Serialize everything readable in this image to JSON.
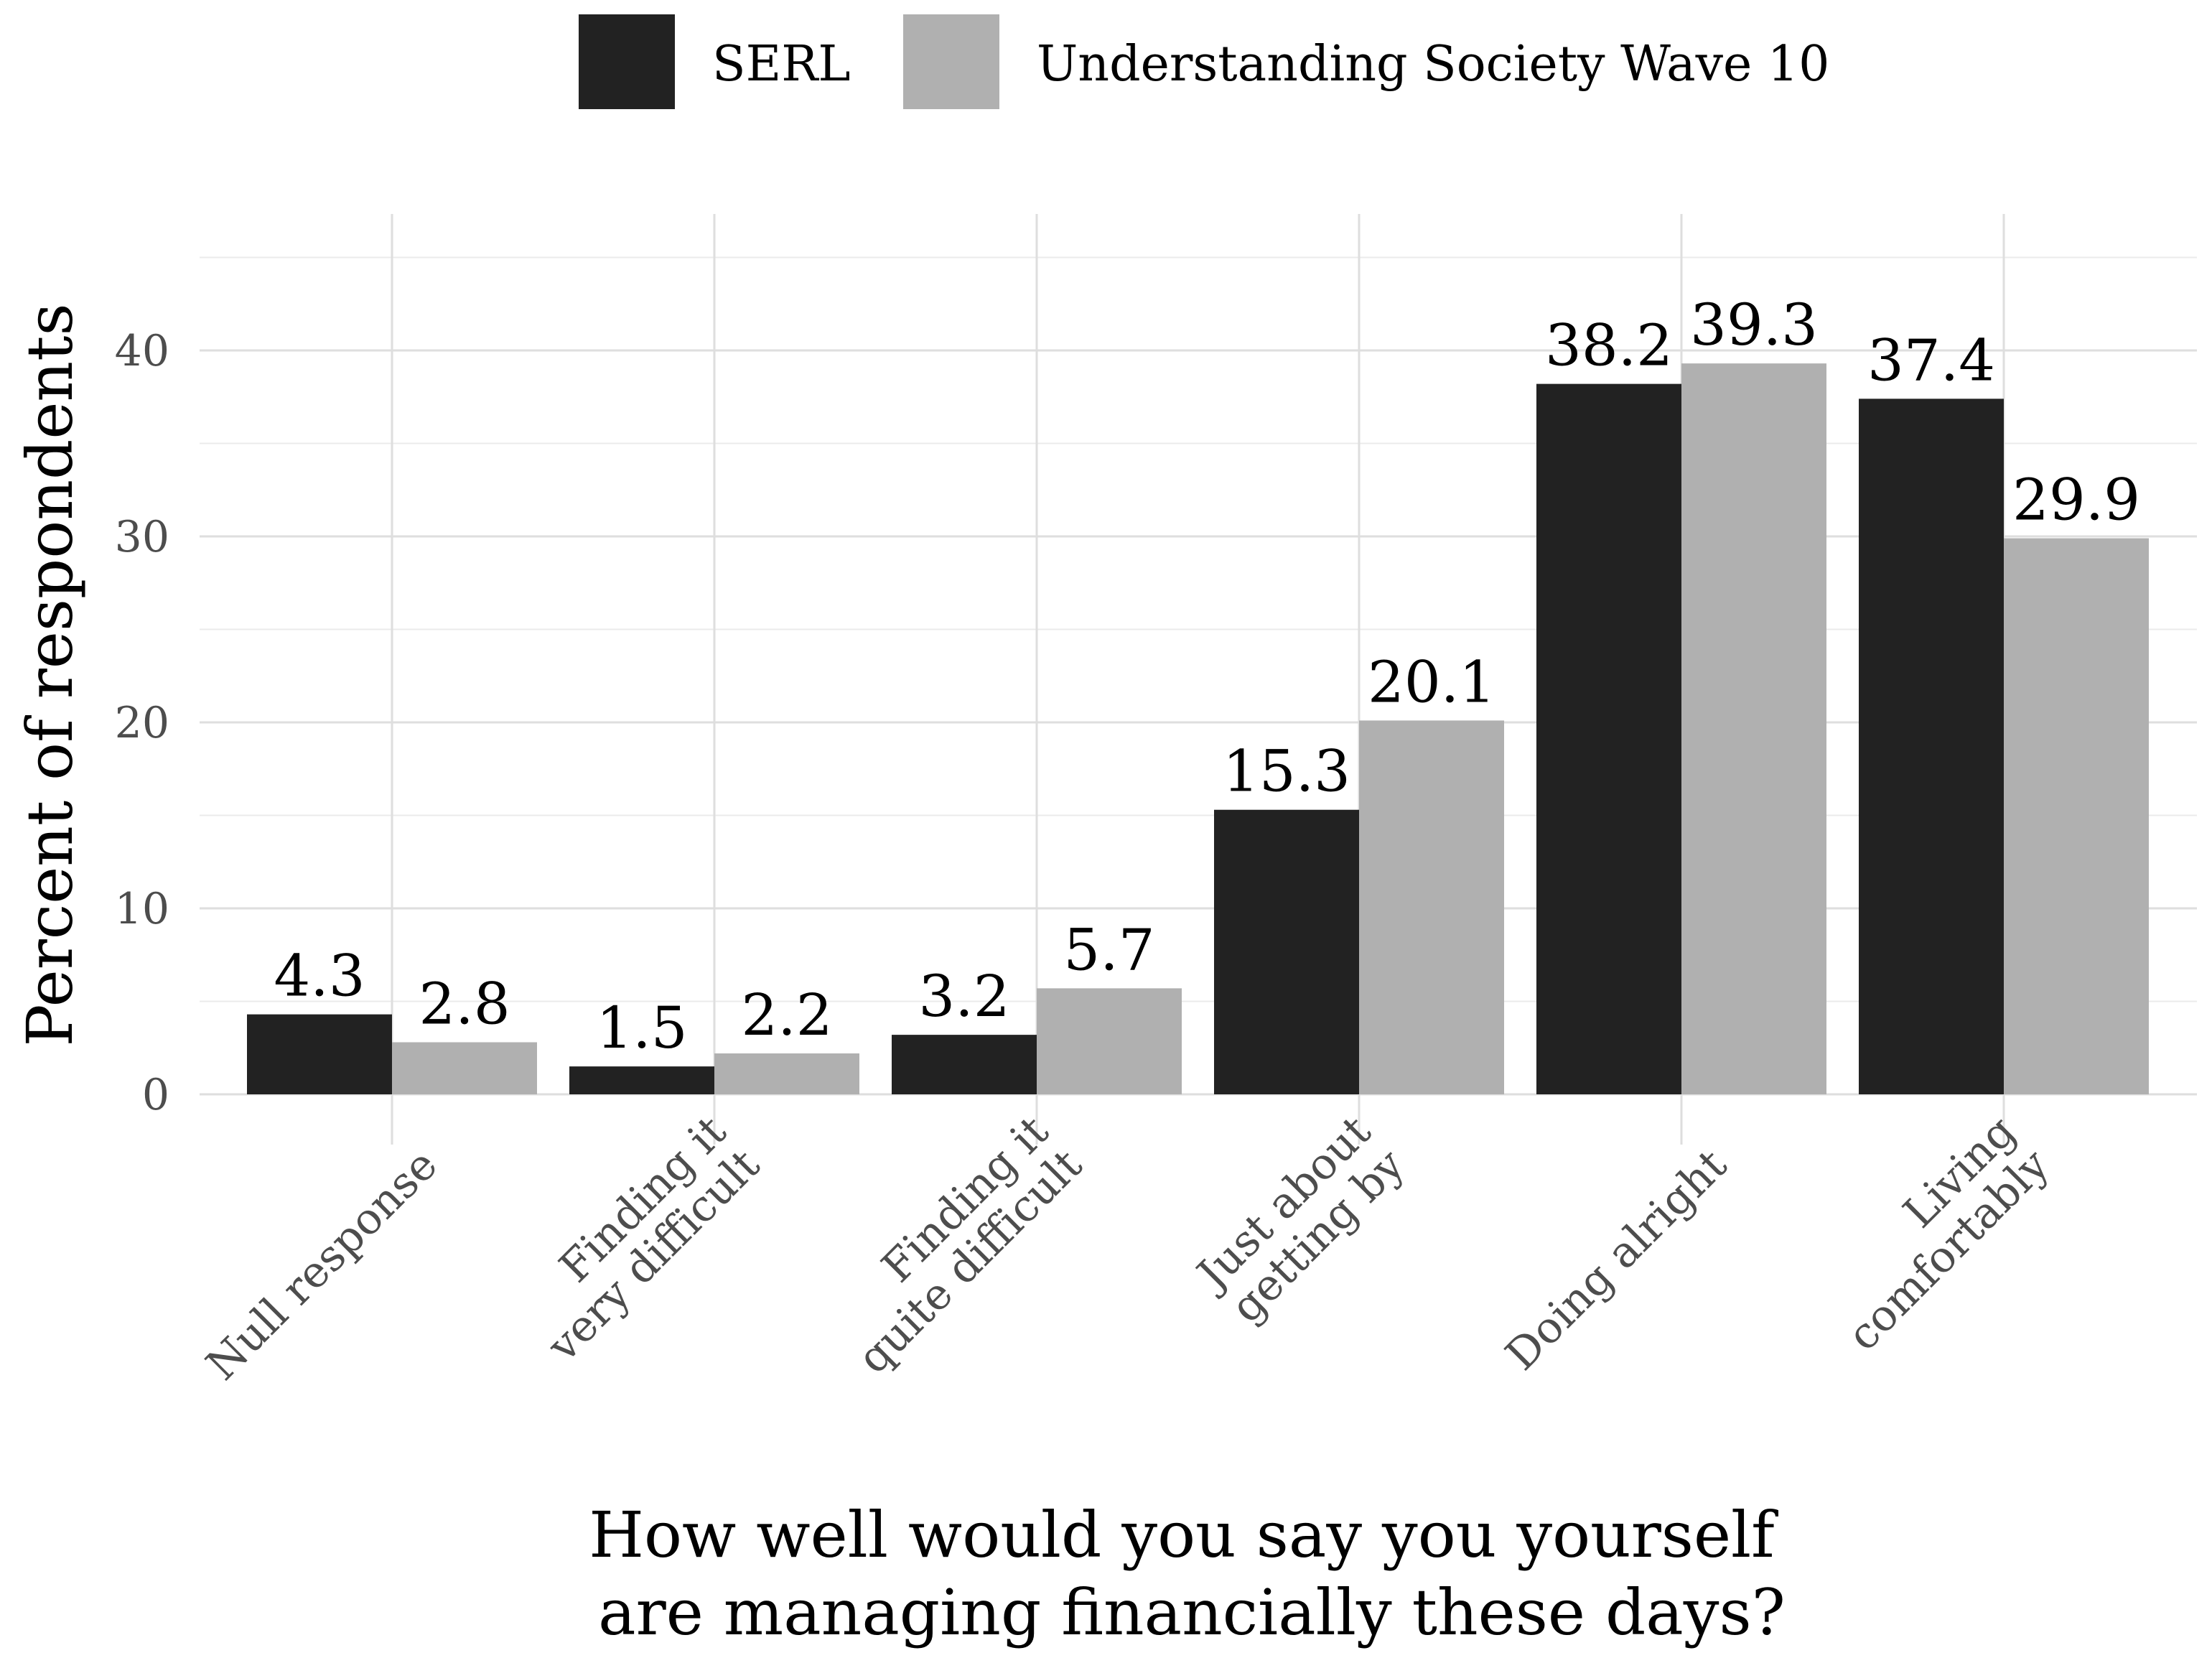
{
  "chart_data": {
    "type": "bar",
    "title": "",
    "xlabel": [
      "How well would you say you yourself",
      "are managing financially these days?"
    ],
    "ylabel": "Percent of respondents",
    "ylim": [
      0,
      45
    ],
    "yticks": [
      0,
      10,
      20,
      30,
      40
    ],
    "grid": true,
    "legend_position": "top",
    "categories": [
      [
        "Null response"
      ],
      [
        "Finding it",
        "very difficult"
      ],
      [
        "Finding it",
        "quite difficult"
      ],
      [
        "Just about",
        "getting by"
      ],
      [
        "Doing alright"
      ],
      [
        "Living",
        "comfortably"
      ]
    ],
    "series": [
      {
        "name": "SERL",
        "color": "#222222",
        "values": [
          4.3,
          1.5,
          3.2,
          15.3,
          38.2,
          37.4
        ],
        "labels": [
          "4.3",
          "1.5",
          "3.2",
          "15.3",
          "38.2",
          "37.4"
        ]
      },
      {
        "name": "Understanding Society Wave 10",
        "color": "#b0b0b0",
        "values": [
          2.8,
          2.2,
          5.7,
          20.1,
          39.3,
          29.9
        ],
        "labels": [
          "2.8",
          "2.2",
          "5.7",
          "20.1",
          "39.3",
          "29.9"
        ]
      }
    ]
  }
}
